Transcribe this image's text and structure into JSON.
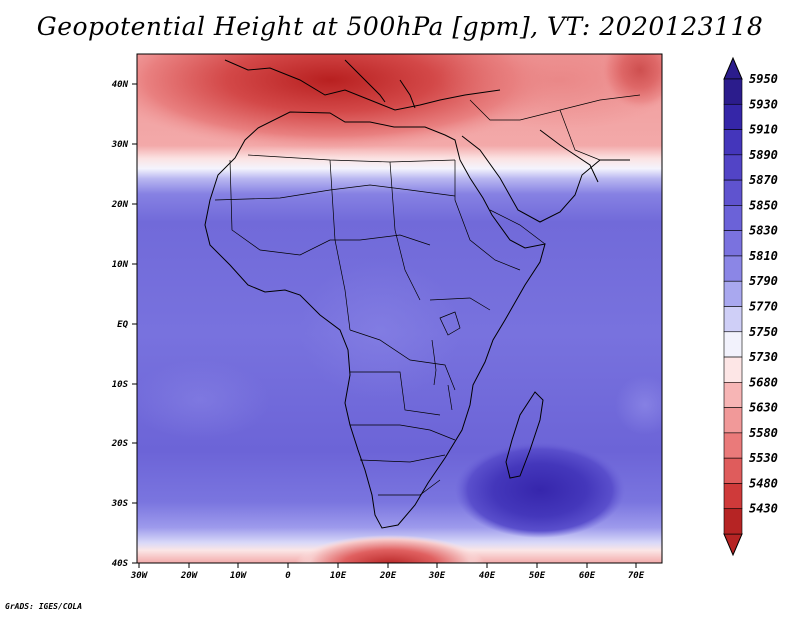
{
  "title": "Geopotential Height at 500hPa [gpm], VT: 2020123118",
  "credit": "GrADS: IGES/COLA",
  "map": {
    "lat_ticks": [
      "40N",
      "30N",
      "20N",
      "10N",
      "EQ",
      "10S",
      "20S",
      "30S",
      "40S"
    ],
    "lon_ticks": [
      "30W",
      "20W",
      "10W",
      "0",
      "10E",
      "20E",
      "30E",
      "40E",
      "50E",
      "60E",
      "70E"
    ]
  },
  "colorbar": {
    "levels": [
      "5950",
      "5930",
      "5910",
      "5890",
      "5870",
      "5850",
      "5830",
      "5810",
      "5790",
      "5770",
      "5750",
      "5730",
      "5680",
      "5630",
      "5580",
      "5530",
      "5480",
      "5430"
    ],
    "colors": [
      "#2b1c8c",
      "#3526a8",
      "#4436bb",
      "#5244c6",
      "#5f53cf",
      "#6b62d8",
      "#7a72df",
      "#8b86e6",
      "#a9a8ef",
      "#cfcff7",
      "#f2f2fc",
      "#fde6e6",
      "#f7b5b5",
      "#f19999",
      "#ea7a7a",
      "#df5c5c",
      "#cf3a3a",
      "#b62424"
    ]
  },
  "colors": {
    "pale_blue": "#7d79e2",
    "mid_blue": "#6a61d6",
    "deep_blue": "#3a2fb4",
    "light_red": "#f4a6a6",
    "mid_red": "#e77e7e",
    "dark_red": "#bf2d2d"
  }
}
